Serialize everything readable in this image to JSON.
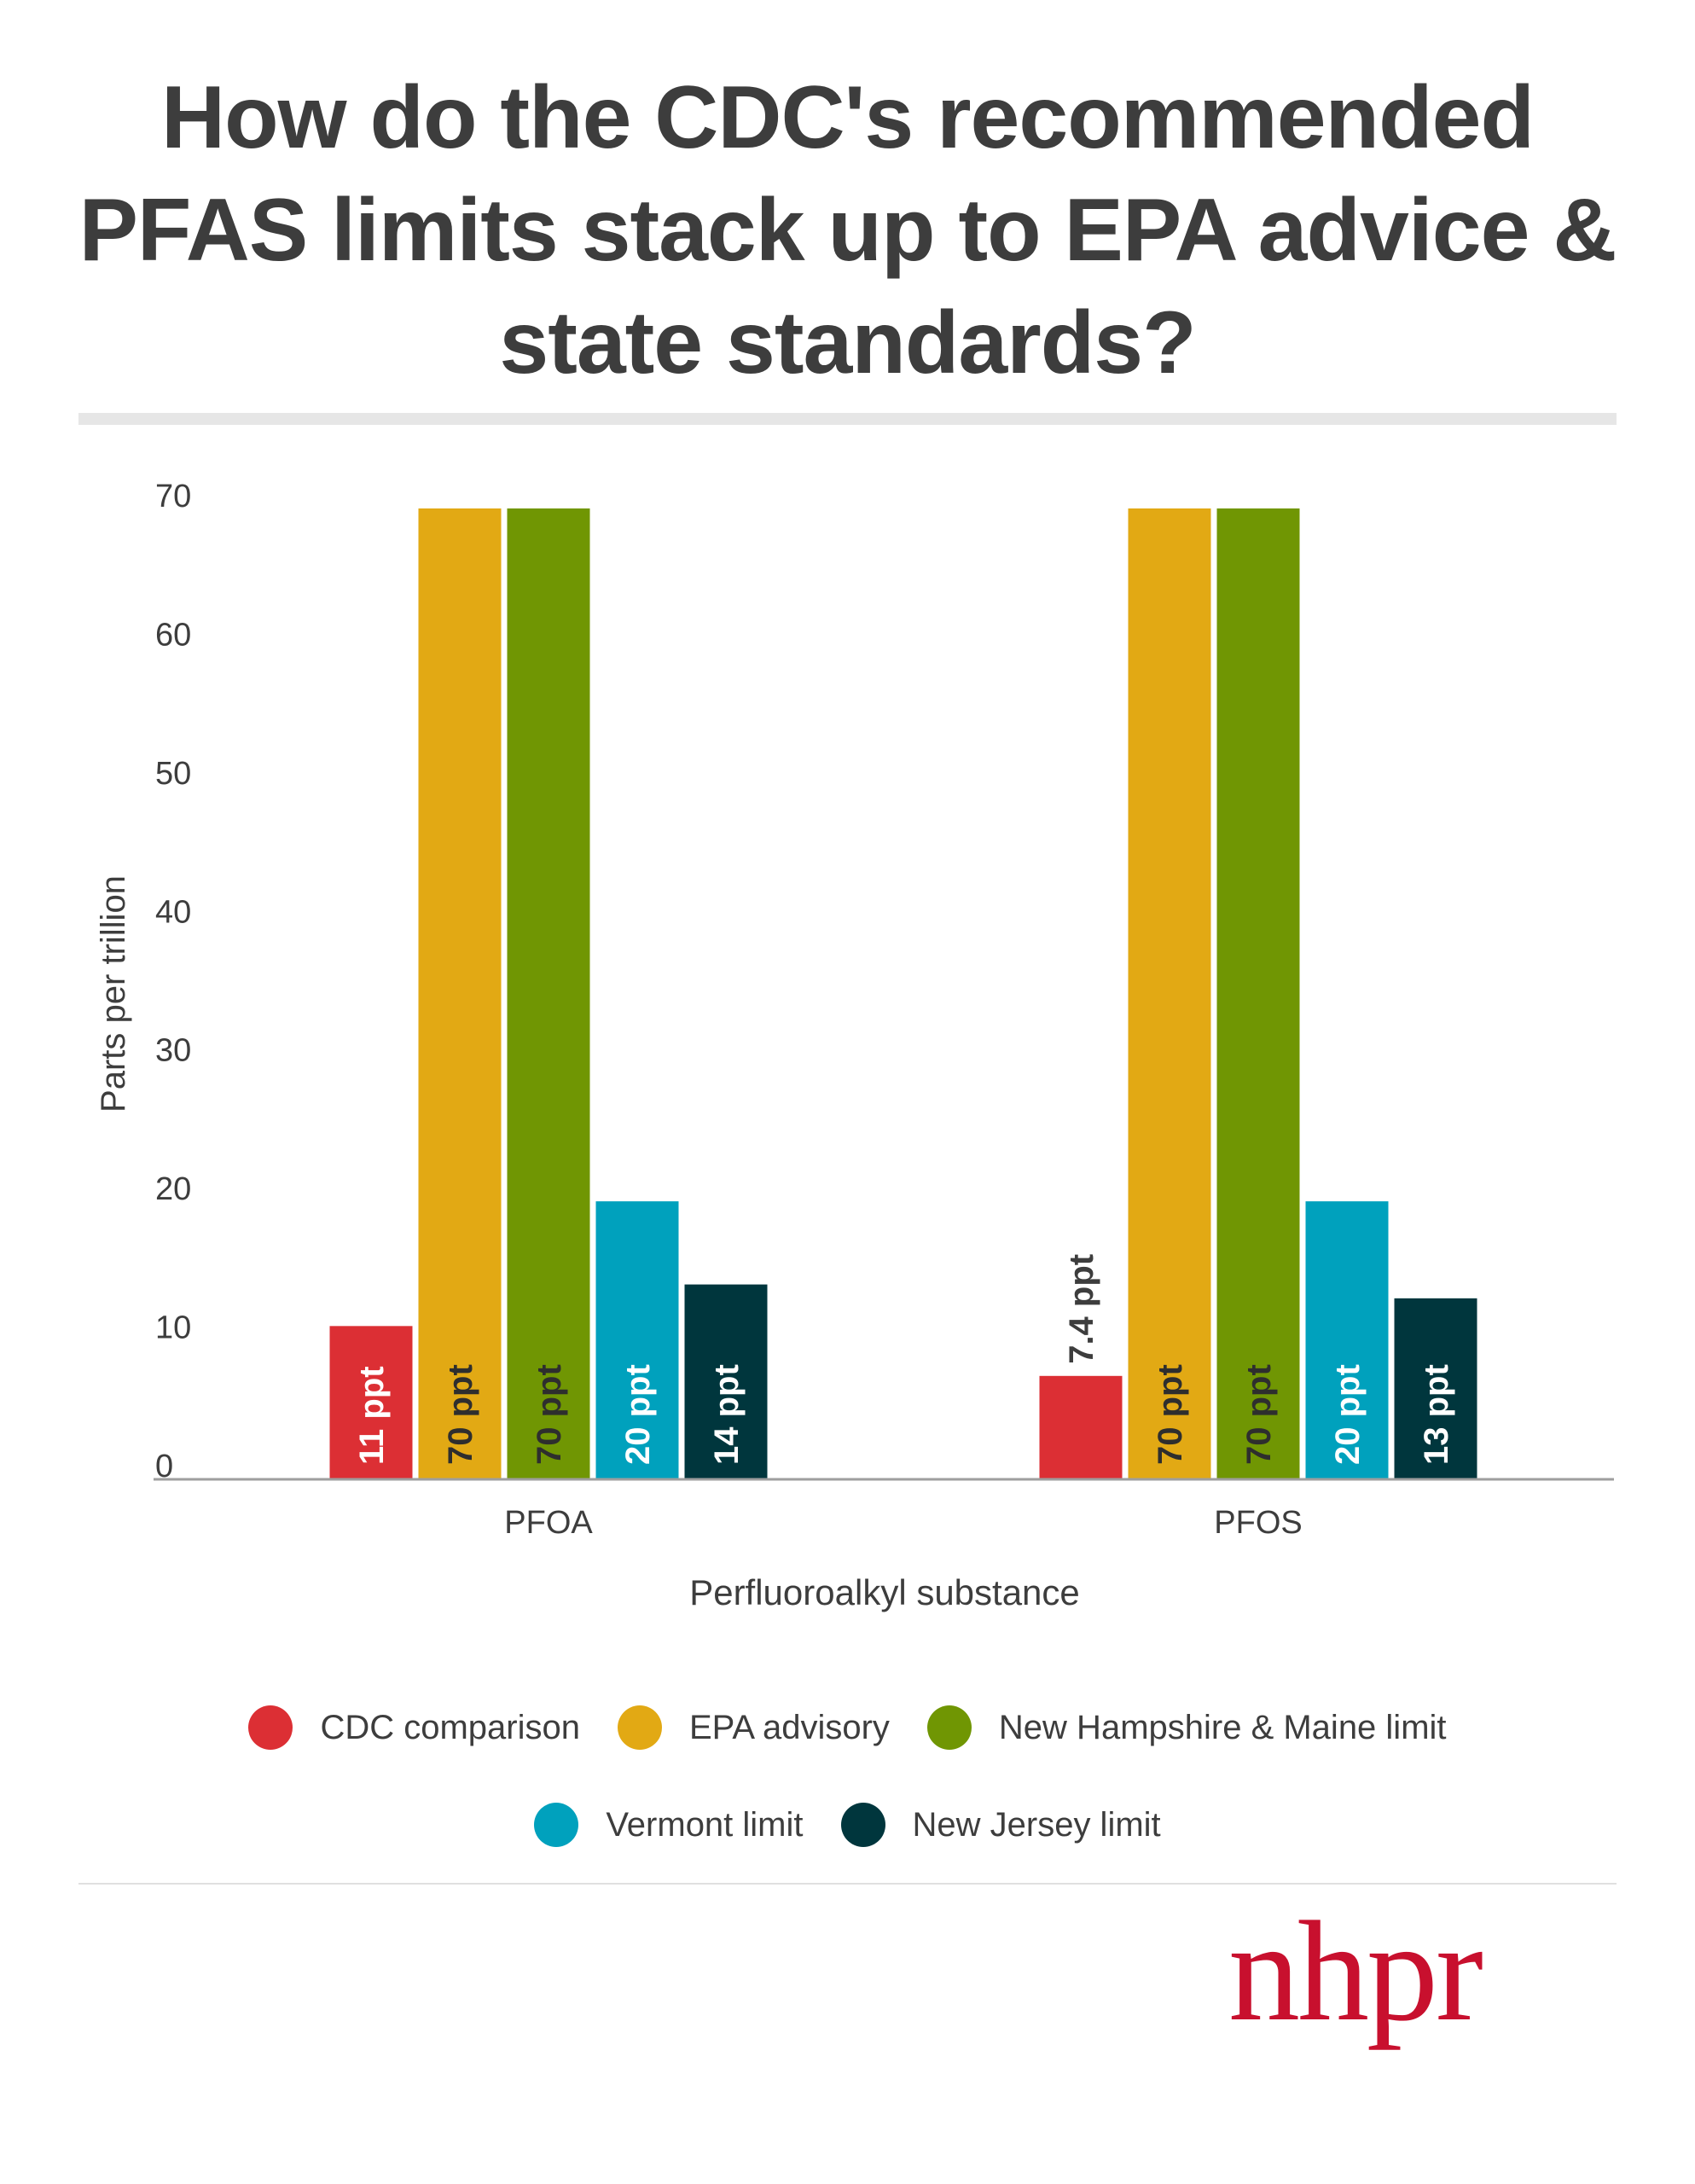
{
  "title": "How do the CDC's recommended PFAS limits stack up to EPA advice & state standards?",
  "brand": {
    "logo_text": "nhpr",
    "logo_color": "#c8102e"
  },
  "colors": {
    "text": "#3d3d3d",
    "axis": "#9e9e9e"
  },
  "chart_data": {
    "type": "bar",
    "categories": [
      "PFOA",
      "PFOS"
    ],
    "xlabel": "Perfluoroalkyl substance",
    "ylabel": "Parts per trillion",
    "ylim": [
      0,
      70
    ],
    "yticks": [
      0,
      10,
      20,
      30,
      40,
      50,
      60,
      70
    ],
    "grid": false,
    "legend_position": "bottom",
    "series": [
      {
        "name": "CDC comparison",
        "color": "#dc2f34",
        "values": [
          11,
          7.4
        ],
        "labels": [
          "11 ppt",
          "7.4 ppt"
        ]
      },
      {
        "name": "EPA advisory",
        "color": "#e2a914",
        "values": [
          70,
          70
        ],
        "labels": [
          "70 ppt",
          "70 ppt"
        ]
      },
      {
        "name": "New Hampshire & Maine limit",
        "color": "#709603",
        "values": [
          70,
          70
        ],
        "labels": [
          "70 ppt",
          "70 ppt"
        ]
      },
      {
        "name": "Vermont limit",
        "color": "#00a1bd",
        "values": [
          20,
          20
        ],
        "labels": [
          "20 ppt",
          "20 ppt"
        ]
      },
      {
        "name": "New Jersey limit",
        "color": "#00363d",
        "values": [
          14,
          13
        ],
        "labels": [
          "14 ppt",
          "13 ppt"
        ]
      }
    ]
  }
}
